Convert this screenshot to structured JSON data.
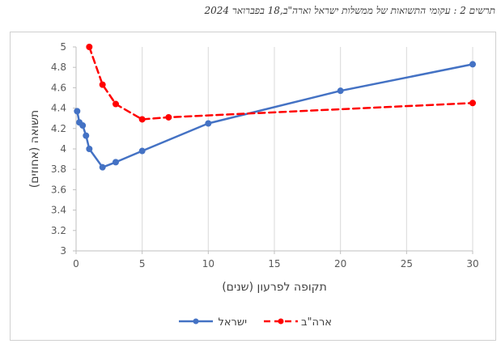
{
  "caption": "תרשים 2 : עקומי התשואות של ממשלות ישראל וארה\"ב,18 בפברואר 2024",
  "chart_data": {
    "type": "line",
    "title": "",
    "xlabel": "תקופה לפרעון (שנים)",
    "ylabel": "תשואה (אחוזים)",
    "xlim": [
      0,
      30
    ],
    "ylim": [
      3,
      5
    ],
    "xticks": [
      0,
      5,
      10,
      15,
      20,
      25,
      30
    ],
    "yticks": [
      3,
      3.2,
      3.4,
      3.6,
      3.8,
      4,
      4.2,
      4.4,
      4.6,
      4.8,
      5
    ],
    "grid": "vertical",
    "legend_position": "bottom",
    "series": [
      {
        "name": "ישראל",
        "color": "#4472c4",
        "line_style": "solid",
        "marker": "circle",
        "x": [
          0.08,
          0.25,
          0.5,
          0.75,
          1,
          2,
          3,
          5,
          10,
          20,
          30
        ],
        "y": [
          4.37,
          4.26,
          4.23,
          4.13,
          4.0,
          3.82,
          3.87,
          3.98,
          4.25,
          4.57,
          4.83
        ]
      },
      {
        "name": "ארה\"ב",
        "color": "#ff0000",
        "line_style": "dashed",
        "marker": "circle",
        "x": [
          1,
          2,
          3,
          5,
          7,
          30
        ],
        "y": [
          5.0,
          4.63,
          4.44,
          4.29,
          4.31,
          4.45
        ]
      }
    ]
  }
}
